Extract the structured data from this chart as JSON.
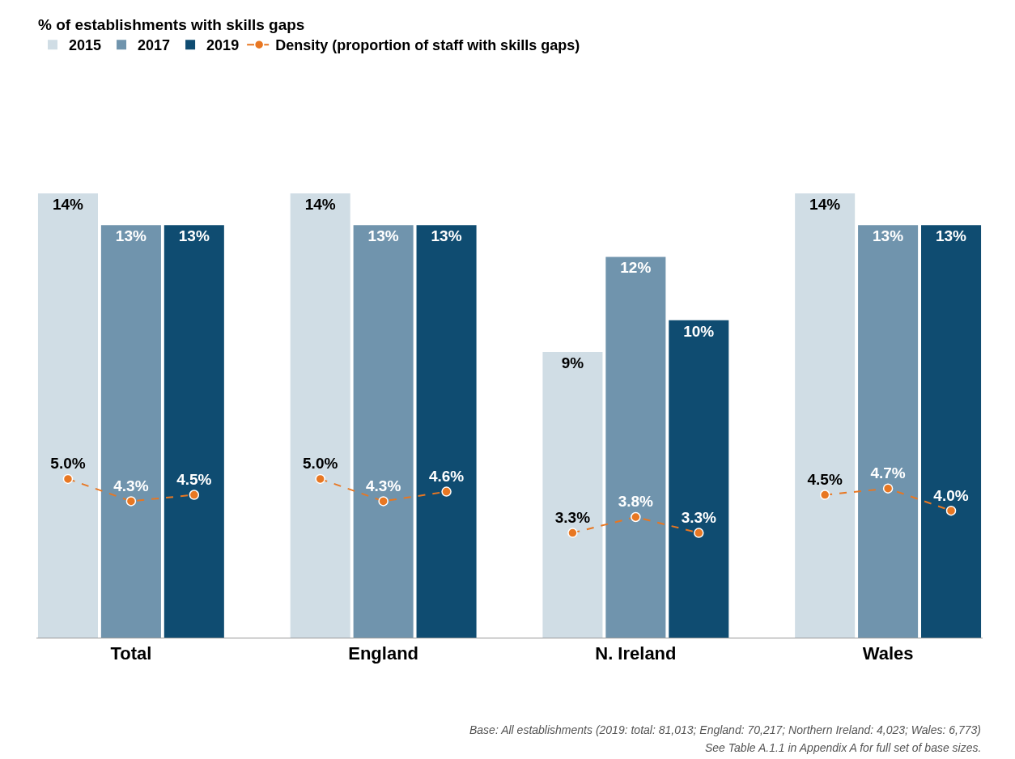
{
  "chart_data": {
    "type": "bar",
    "categories": [
      null,
      "Total",
      null,
      null,
      null,
      "England",
      null,
      null,
      null,
      "N. Ireland",
      null,
      null,
      null,
      "Wales",
      null
    ],
    "legend_title": "% of establishments with skills gaps",
    "legend": "top left",
    "tick_labels": "x",
    "series": [
      {
        "name": "2015",
        "color": "#d0dde5",
        "values": [
          14,
          null,
          null,
          null,
          14,
          null,
          null,
          null,
          9,
          null,
          null,
          null,
          14,
          null,
          null
        ],
        "value_labels": [
          "14%",
          null,
          null,
          null,
          "14%",
          null,
          null,
          null,
          "9%",
          null,
          null,
          null,
          "14%",
          null,
          null
        ]
      },
      {
        "name": "2017",
        "color": "#7094ad",
        "values": [
          null,
          13,
          null,
          null,
          null,
          13,
          null,
          null,
          null,
          12,
          null,
          null,
          null,
          13,
          null
        ],
        "value_labels": [
          null,
          "13%",
          null,
          null,
          null,
          "13%",
          null,
          null,
          null,
          "12%",
          null,
          null,
          null,
          "13%",
          null
        ]
      },
      {
        "name": "2019",
        "color": "#0f4c71",
        "values": [
          null,
          null,
          13,
          null,
          null,
          null,
          13,
          null,
          null,
          null,
          10,
          null,
          null,
          null,
          13
        ],
        "value_labels": [
          null,
          null,
          "13%",
          null,
          null,
          null,
          "13%",
          null,
          null,
          null,
          "10%",
          null,
          null,
          null,
          "13%"
        ]
      },
      {
        "type": "line",
        "name": "Density (proportion of staff with skills gaps)",
        "color": "#e87722",
        "line_style": "dashed",
        "marker": "circle",
        "values": [
          5.0,
          4.3,
          4.5,
          null,
          null,
          null,
          null,
          null,
          null,
          null,
          null,
          null,
          null,
          null,
          null
        ],
        "value_labels": [
          "5.0%",
          "4.3%",
          "4.5%",
          null,
          null,
          null,
          null,
          null,
          null,
          null,
          null,
          null,
          null,
          null,
          null
        ]
      },
      {
        "type": "line",
        "color": "#e87722",
        "line_style": "dashed",
        "marker": "circle",
        "values": [
          null,
          null,
          null,
          null,
          5.0,
          4.3,
          4.6,
          null,
          null,
          null,
          null,
          null,
          null,
          null,
          null
        ],
        "value_labels": [
          null,
          null,
          null,
          null,
          "5.0%",
          "4.3%",
          "4.6%",
          null,
          null,
          null,
          null,
          null,
          null,
          null,
          null
        ]
      },
      {
        "type": "line",
        "color": "#e87722",
        "line_style": "dashed",
        "marker": "circle",
        "values": [
          null,
          null,
          null,
          null,
          null,
          null,
          null,
          null,
          3.3,
          3.8,
          3.3,
          null,
          null,
          null,
          null
        ],
        "value_labels": [
          null,
          null,
          null,
          null,
          null,
          null,
          null,
          null,
          "3.3%",
          "3.8%",
          "3.3%",
          null,
          null,
          null,
          null
        ]
      },
      {
        "type": "line",
        "color": "#e87722",
        "line_style": "dashed",
        "marker": "circle",
        "values": [
          null,
          null,
          null,
          null,
          null,
          null,
          null,
          null,
          null,
          null,
          null,
          null,
          4.5,
          4.7,
          4.0
        ],
        "value_labels": [
          null,
          null,
          null,
          null,
          null,
          null,
          null,
          null,
          null,
          null,
          null,
          null,
          "4.5%",
          "4.7%",
          "4.0%"
        ]
      }
    ],
    "annotations": [
      "Base: All establishments (2019: total: 81,013; England: 70,217; Northern Ireland: 4,023; Wales: 6,773)",
      "See Table A.1.1 in Appendix A for full set of base sizes."
    ]
  }
}
